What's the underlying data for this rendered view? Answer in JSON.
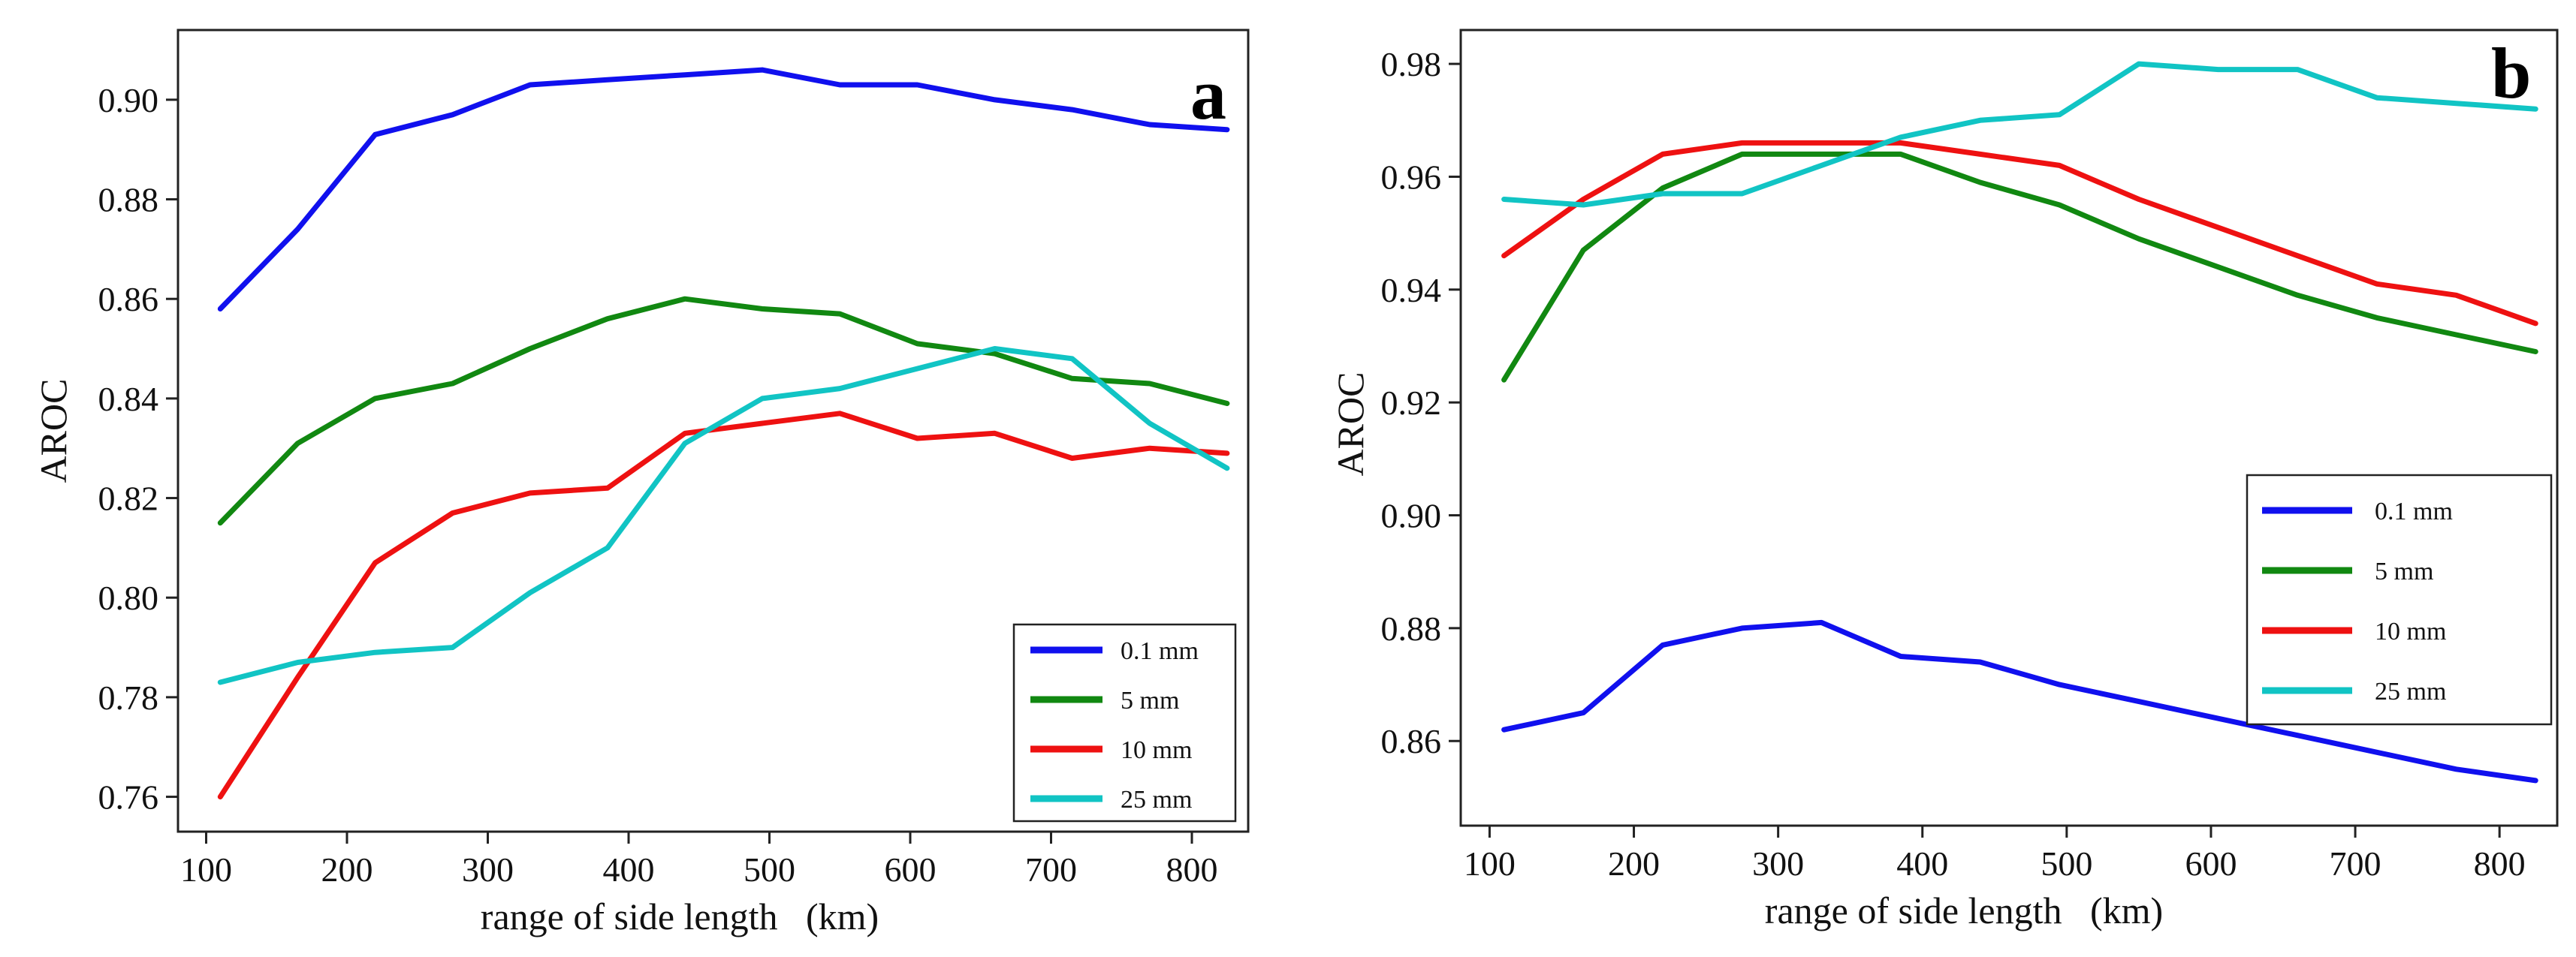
{
  "chart_data": [
    {
      "panel": "a",
      "type": "line",
      "panel_label": "a",
      "xlabel": "range of side length   (km)",
      "ylabel": "AROC",
      "xlim": [
        80,
        840
      ],
      "ylim": [
        0.753,
        0.914
      ],
      "xticks": [
        100,
        200,
        300,
        400,
        500,
        600,
        700,
        800
      ],
      "xtick_labels": [
        "100",
        "200",
        "300",
        "400",
        "500",
        "600",
        "700",
        "800"
      ],
      "yticks": [
        0.76,
        0.78,
        0.8,
        0.82,
        0.84,
        0.86,
        0.88,
        0.9
      ],
      "ytick_labels": [
        "0.76",
        "0.78",
        "0.80",
        "0.82",
        "0.84",
        "0.86",
        "0.88",
        "0.90"
      ],
      "legend_position": "lower-right",
      "x": [
        110,
        165,
        220,
        275,
        330,
        385,
        440,
        495,
        550,
        605,
        660,
        715,
        770,
        825
      ],
      "series": [
        {
          "name": "0.1 mm",
          "color": "#1010ee",
          "values": [
            0.858,
            0.874,
            0.893,
            0.897,
            0.903,
            0.904,
            0.905,
            0.906,
            0.903,
            0.903,
            0.9,
            0.898,
            0.895,
            0.894
          ]
        },
        {
          "name": "5 mm",
          "color": "#118811",
          "values": [
            0.815,
            0.831,
            0.84,
            0.843,
            0.85,
            0.856,
            0.86,
            0.858,
            0.857,
            0.851,
            0.849,
            0.844,
            0.843,
            0.839
          ]
        },
        {
          "name": "10 mm",
          "color": "#ee1111",
          "values": [
            0.76,
            0.784,
            0.807,
            0.817,
            0.821,
            0.822,
            0.833,
            0.835,
            0.837,
            0.832,
            0.833,
            0.828,
            0.83,
            0.829
          ]
        },
        {
          "name": "25 mm",
          "color": "#11c4c4",
          "values": [
            0.783,
            0.787,
            0.789,
            0.79,
            0.801,
            0.81,
            0.831,
            0.84,
            0.842,
            0.846,
            0.85,
            0.848,
            0.835,
            0.826
          ]
        }
      ]
    },
    {
      "panel": "b",
      "type": "line",
      "panel_label": "b",
      "xlabel": "range of side length   (km)",
      "ylabel": "AROC",
      "xlim": [
        80,
        840
      ],
      "ylim": [
        0.845,
        0.986
      ],
      "xticks": [
        100,
        200,
        300,
        400,
        500,
        600,
        700,
        800
      ],
      "xtick_labels": [
        "100",
        "200",
        "300",
        "400",
        "500",
        "600",
        "700",
        "800"
      ],
      "yticks": [
        0.86,
        0.88,
        0.9,
        0.92,
        0.94,
        0.96,
        0.98
      ],
      "ytick_labels": [
        "0.86",
        "0.88",
        "0.90",
        "0.92",
        "0.94",
        "0.96",
        "0.98"
      ],
      "legend_position": "center-right",
      "x": [
        110,
        165,
        220,
        275,
        330,
        385,
        440,
        495,
        550,
        605,
        660,
        715,
        770,
        825
      ],
      "series": [
        {
          "name": "0.1 mm",
          "color": "#1010ee",
          "values": [
            0.862,
            0.865,
            0.877,
            0.88,
            0.881,
            0.875,
            0.874,
            0.87,
            0.867,
            0.864,
            0.861,
            0.858,
            0.855,
            0.853
          ]
        },
        {
          "name": "5 mm",
          "color": "#118811",
          "values": [
            0.924,
            0.947,
            0.958,
            0.964,
            0.964,
            0.964,
            0.959,
            0.955,
            0.949,
            0.944,
            0.939,
            0.935,
            0.932,
            0.929
          ]
        },
        {
          "name": "10 mm",
          "color": "#ee1111",
          "values": [
            0.946,
            0.956,
            0.964,
            0.966,
            0.966,
            0.966,
            0.964,
            0.962,
            0.956,
            0.951,
            0.946,
            0.941,
            0.939,
            0.934
          ]
        },
        {
          "name": "25 mm",
          "color": "#11c4c4",
          "values": [
            0.956,
            0.955,
            0.957,
            0.957,
            0.962,
            0.967,
            0.97,
            0.971,
            0.98,
            0.979,
            0.979,
            0.974,
            0.973,
            0.972
          ]
        }
      ]
    }
  ]
}
